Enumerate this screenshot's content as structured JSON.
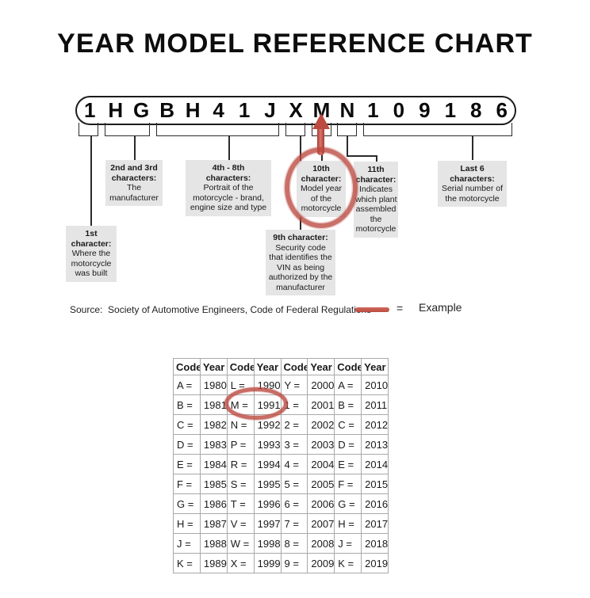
{
  "title": "YEAR MODEL REFERENCE CHART",
  "vin": {
    "characters": [
      "1",
      "H",
      "G",
      "B",
      "H",
      "4",
      "1",
      "J",
      "X",
      "M",
      "N",
      "1",
      "0",
      "9",
      "1",
      "8",
      "6"
    ]
  },
  "annotations": [
    {
      "name": "1st-character",
      "bold_lines": 2,
      "lines": [
        "1st",
        "character:",
        "Where the",
        "motorcycle",
        "was built"
      ]
    },
    {
      "name": "2nd-3rd-characters",
      "bold_lines": 2,
      "lines": [
        "2nd and 3rd",
        "characters:",
        "The",
        "manufacturer"
      ]
    },
    {
      "name": "4th-8th-characters",
      "bold_lines": 2,
      "lines": [
        "4th - 8th",
        "characters:",
        "Portrait of the",
        "motorcycle - brand,",
        "engine size and type"
      ]
    },
    {
      "name": "9th-character",
      "bold_lines": 1,
      "lines": [
        "9th character:",
        "Security code",
        "that identifies the",
        "VIN as being",
        "authorized by the",
        "manufacturer"
      ]
    },
    {
      "name": "10th-character",
      "bold_lines": 2,
      "lines": [
        "10th",
        "character:",
        "Model year",
        "of the",
        "motorcycle"
      ]
    },
    {
      "name": "11th-character",
      "bold_lines": 2,
      "lines": [
        "11th",
        "character:",
        "Indicates",
        "which plant",
        "assembled",
        "the",
        "motorcycle"
      ]
    },
    {
      "name": "last-6-characters",
      "bold_lines": 2,
      "lines": [
        "Last 6",
        "characters:",
        "Serial number of",
        "the motorcycle"
      ]
    }
  ],
  "source": "Source:  Society of Automotive Engineers, Code of Federal Regulations",
  "legend": {
    "equals": "=",
    "label": "Example"
  },
  "table": {
    "headers": [
      "Code",
      "Year",
      "Code",
      "Year",
      "Code",
      "Year",
      "Code",
      "Year"
    ],
    "rows": [
      [
        "A =",
        "1980",
        "L =",
        "1990",
        "Y =",
        "2000",
        "A =",
        "2010"
      ],
      [
        "B =",
        "1981",
        "M =",
        "1991",
        "1 =",
        "2001",
        "B =",
        "2011"
      ],
      [
        "C =",
        "1982",
        "N =",
        "1992",
        "2 =",
        "2002",
        "C =",
        "2012"
      ],
      [
        "D =",
        "1983",
        "P =",
        "1993",
        "3 =",
        "2003",
        "D =",
        "2013"
      ],
      [
        "E =",
        "1984",
        "R =",
        "1994",
        "4 =",
        "2004",
        "E =",
        "2014"
      ],
      [
        "F =",
        "1985",
        "S =",
        "1995",
        "5 =",
        "2005",
        "F =",
        "2015"
      ],
      [
        "G =",
        "1986",
        "T =",
        "1996",
        "6 =",
        "2006",
        "G =",
        "2016"
      ],
      [
        "H =",
        "1987",
        "V =",
        "1997",
        "7 =",
        "2007",
        "H =",
        "2017"
      ],
      [
        "J =",
        "1988",
        "W =",
        "1998",
        "8 =",
        "2008",
        "J =",
        "2018"
      ],
      [
        "K =",
        "1989",
        "X =",
        "1999",
        "9 =",
        "2009",
        "K =",
        "2019"
      ]
    ]
  },
  "colors": {
    "accent_red": "#bc4a41",
    "box_bg": "#e5e5e5",
    "table_border": "#a9a9a9"
  }
}
